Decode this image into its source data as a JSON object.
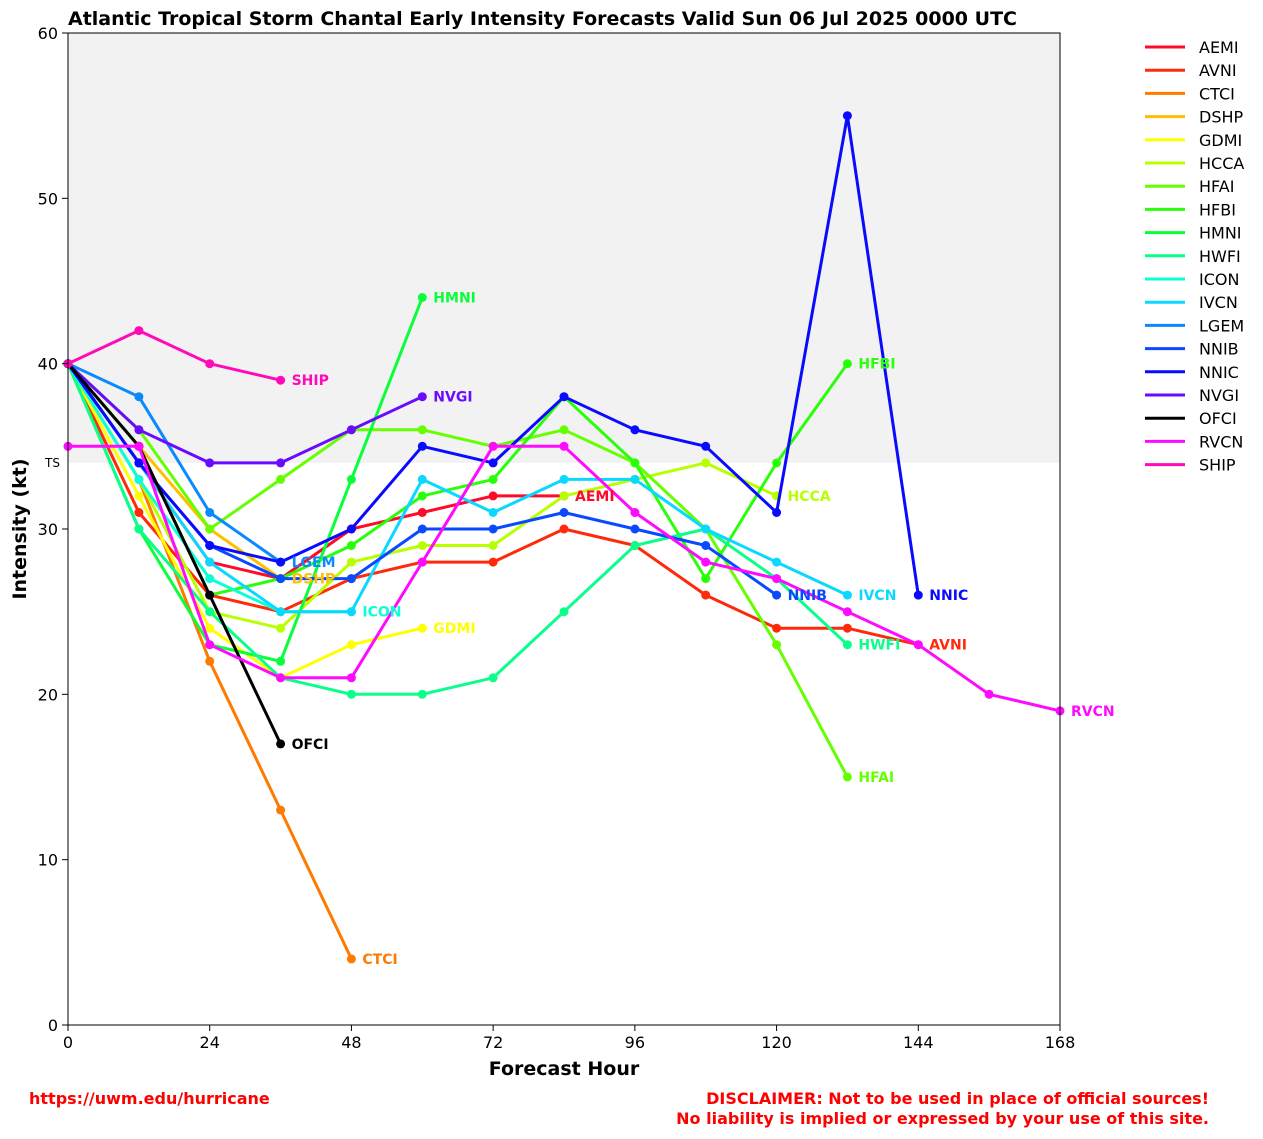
{
  "chart_data": {
    "type": "line",
    "title": "Atlantic Tropical Storm Chantal Early Intensity Forecasts Valid Sun 06 Jul 2025 0000 UTC",
    "xlabel": "Forecast Hour",
    "ylabel": "Intensity (kt)",
    "xlim": [
      0,
      168
    ],
    "ylim": [
      0,
      60
    ],
    "xticks": [
      0,
      24,
      48,
      72,
      96,
      120,
      144,
      168
    ],
    "yticks": [
      0,
      10,
      20,
      30,
      40,
      50,
      60
    ],
    "grid": false,
    "legend_position": "outside-right",
    "shaded_band": {
      "label": "TS",
      "y_from": 34,
      "y_to": 60,
      "color": "#f2f2f2"
    },
    "series": [
      {
        "name": "AEMI",
        "color": "#ff0a28",
        "x": [
          0,
          12,
          24,
          36,
          48,
          60,
          72,
          84
        ],
        "y": [
          40,
          34,
          28,
          27,
          30,
          31,
          32,
          32
        ]
      },
      {
        "name": "AVNI",
        "color": "#ff2a0a",
        "x": [
          0,
          12,
          24,
          36,
          48,
          60,
          72,
          84,
          96,
          108,
          120,
          132,
          144
        ],
        "y": [
          40,
          31,
          26,
          25,
          27,
          28,
          28,
          30,
          29,
          26,
          24,
          24,
          23
        ]
      },
      {
        "name": "CTCI",
        "color": "#ff7a00",
        "x": [
          0,
          12,
          24,
          36,
          48
        ],
        "y": [
          40,
          33,
          22,
          13,
          4
        ]
      },
      {
        "name": "DSHP",
        "color": "#ffbf00",
        "x": [
          0,
          12,
          24,
          36
        ],
        "y": [
          40,
          35,
          30,
          27
        ]
      },
      {
        "name": "GDMI",
        "color": "#ffff00",
        "x": [
          0,
          12,
          24,
          36,
          48,
          60
        ],
        "y": [
          40,
          32,
          24,
          21,
          23,
          24
        ]
      },
      {
        "name": "HCCA",
        "color": "#b8ff00",
        "x": [
          0,
          12,
          24,
          36,
          48,
          60,
          72,
          84,
          96,
          108,
          120
        ],
        "y": [
          40,
          33,
          25,
          24,
          28,
          29,
          29,
          32,
          33,
          34,
          32
        ]
      },
      {
        "name": "HFAI",
        "color": "#66ff00",
        "x": [
          0,
          12,
          24,
          36,
          48,
          60,
          72,
          84,
          96,
          108,
          120,
          132
        ],
        "y": [
          40,
          36,
          30,
          33,
          36,
          36,
          35,
          36,
          34,
          30,
          23,
          15
        ]
      },
      {
        "name": "HFBI",
        "color": "#2aff0a",
        "x": [
          0,
          12,
          24,
          36,
          48,
          60,
          72,
          84,
          96,
          108,
          120,
          132
        ],
        "y": [
          40,
          35,
          26,
          27,
          29,
          32,
          33,
          38,
          34,
          27,
          34,
          40
        ]
      },
      {
        "name": "HMNI",
        "color": "#0aff3a",
        "x": [
          0,
          12,
          24,
          36,
          48,
          60
        ],
        "y": [
          40,
          30,
          23,
          22,
          33,
          44
        ]
      },
      {
        "name": "HWFI",
        "color": "#0aff8a",
        "x": [
          0,
          12,
          24,
          36,
          48,
          60,
          72,
          84,
          96,
          108,
          120,
          132
        ],
        "y": [
          40,
          30,
          25,
          21,
          20,
          20,
          21,
          25,
          29,
          30,
          27,
          23
        ]
      },
      {
        "name": "ICON",
        "color": "#0affd8",
        "x": [
          0,
          12,
          24,
          36,
          48
        ],
        "y": [
          40,
          33,
          27,
          25,
          25
        ]
      },
      {
        "name": "IVCN",
        "color": "#0ad8ff",
        "x": [
          0,
          12,
          24,
          36,
          48,
          60,
          72,
          84,
          96,
          108,
          120,
          132
        ],
        "y": [
          40,
          34,
          28,
          25,
          25,
          33,
          31,
          33,
          33,
          30,
          28,
          26
        ]
      },
      {
        "name": "LGEM",
        "color": "#0a8aff",
        "x": [
          0,
          12,
          24,
          36
        ],
        "y": [
          40,
          38,
          31,
          28
        ]
      },
      {
        "name": "NNIB",
        "color": "#0a4aff",
        "x": [
          0,
          12,
          24,
          36,
          48,
          60,
          72,
          84,
          96,
          108,
          120
        ],
        "y": [
          40,
          34,
          29,
          27,
          27,
          30,
          30,
          31,
          30,
          29,
          26
        ]
      },
      {
        "name": "NNIC",
        "color": "#0a0aff",
        "x": [
          0,
          12,
          24,
          36,
          48,
          60,
          72,
          84,
          96,
          108,
          120,
          132,
          144
        ],
        "y": [
          40,
          34,
          29,
          28,
          30,
          35,
          34,
          38,
          36,
          35,
          31,
          55,
          26
        ]
      },
      {
        "name": "NVGI",
        "color": "#6a0aff",
        "x": [
          0,
          12,
          24,
          36,
          48,
          60
        ],
        "y": [
          40,
          36,
          34,
          34,
          36,
          38
        ]
      },
      {
        "name": "OFCI",
        "color": "#000000",
        "x": [
          0,
          12,
          24,
          36
        ],
        "y": [
          40,
          35,
          26,
          17
        ]
      },
      {
        "name": "RVCN",
        "color": "#ff0aff",
        "x": [
          0,
          12,
          24,
          36,
          48,
          60,
          72,
          84,
          96,
          108,
          120,
          132,
          144,
          156,
          168
        ],
        "y": [
          35,
          35,
          23,
          21,
          21,
          28,
          35,
          35,
          31,
          28,
          27,
          25,
          23,
          20,
          19
        ]
      },
      {
        "name": "SHIP",
        "color": "#ff0ab8",
        "x": [
          0,
          12,
          24,
          36
        ],
        "y": [
          40,
          42,
          40,
          39
        ]
      }
    ]
  },
  "footer": {
    "url": "https://uwm.edu/hurricane",
    "disclaimer_line1": "DISCLAIMER: Not to be used in place of official sources!",
    "disclaimer_line2": "No liability is implied or expressed by your use of this site."
  }
}
